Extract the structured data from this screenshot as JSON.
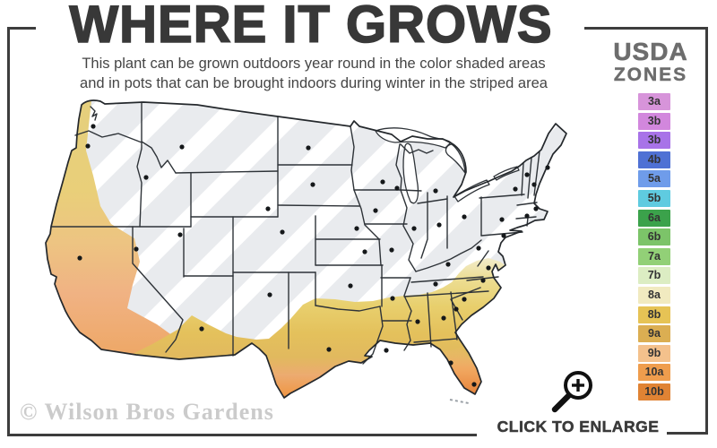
{
  "header": {
    "title": "WHERE IT GROWS",
    "subtitle_line1": "This plant can be grown outdoors year round in the color shaded areas",
    "subtitle_line2": "and in pots that can be brought indoors during winter in the striped area"
  },
  "legend": {
    "heading_line1": "USDA",
    "heading_line2": "ZONES",
    "zones": [
      {
        "label": "3a",
        "color": "#d794da"
      },
      {
        "label": "3b",
        "color": "#d287dd"
      },
      {
        "label": "3b",
        "color": "#a873e8"
      },
      {
        "label": "4b",
        "color": "#4f71d4"
      },
      {
        "label": "5a",
        "color": "#6f9cea"
      },
      {
        "label": "5b",
        "color": "#5fcbe0"
      },
      {
        "label": "6a",
        "color": "#3ba24b"
      },
      {
        "label": "6b",
        "color": "#7cc469"
      },
      {
        "label": "7a",
        "color": "#92d077"
      },
      {
        "label": "7b",
        "color": "#dcedc3"
      },
      {
        "label": "8a",
        "color": "#f1eac0"
      },
      {
        "label": "8b",
        "color": "#e6c355"
      },
      {
        "label": "9a",
        "color": "#dbae52"
      },
      {
        "label": "9b",
        "color": "#f4c18c"
      },
      {
        "label": "10a",
        "color": "#ef9d4d"
      },
      {
        "label": "10b",
        "color": "#e08334"
      }
    ]
  },
  "map": {
    "striped_area_fill": "#e9ebee",
    "stripe_color": "#ffffff",
    "outline_color": "#24282c",
    "shaded_band_colors": [
      "#f3eed2",
      "#e8cf6d",
      "#e4c15c",
      "#ecab70",
      "#ef9b4e",
      "#e98b3a"
    ]
  },
  "watermark": {
    "text": "© Wilson Bros Gardens"
  },
  "enlarge": {
    "label": "CLICK TO ENLARGE",
    "icon": "magnifier-plus-icon"
  }
}
